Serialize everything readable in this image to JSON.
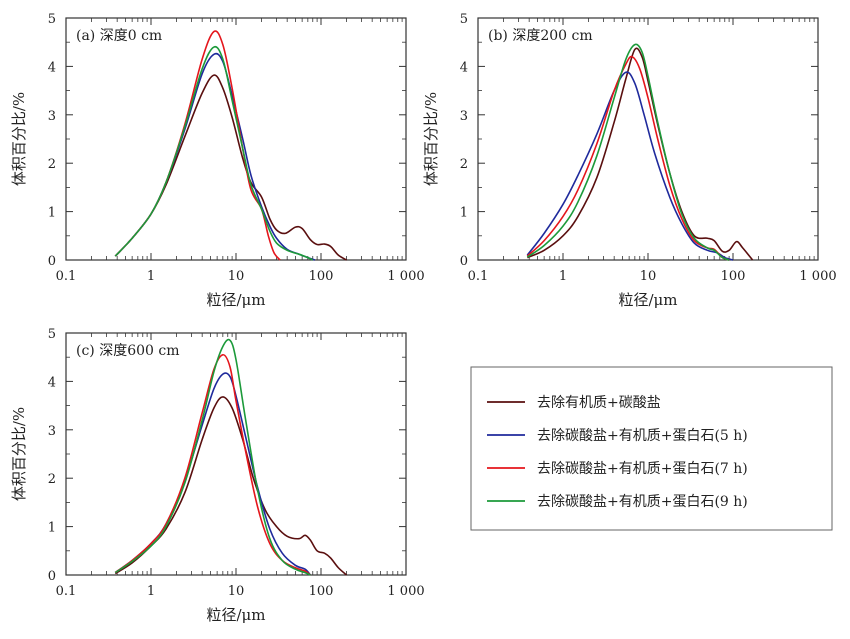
{
  "colors": {
    "series": [
      "#5a0f0f",
      "#1f2a9c",
      "#e4161c",
      "#1c9a3a"
    ]
  },
  "legend": {
    "entries": [
      "去除有机质+碳酸盐",
      "去除碳酸盐+有机质+蛋白石(5 h)",
      "去除碳酸盐+有机质+蛋白石(7 h)",
      "去除碳酸盐+有机质+蛋白石(9 h)"
    ]
  },
  "chart_data": [
    {
      "type": "line",
      "panel_label": "(a) 深度0 cm",
      "xlabel": "粒径/μm",
      "ylabel": "体积百分比/%",
      "xscale": "log",
      "xlim": [
        0.1,
        1000
      ],
      "ylim": [
        0,
        5
      ],
      "x_ticks": [
        "0.1",
        "1",
        "10",
        "100",
        "1 000"
      ],
      "y_ticks": [
        "0",
        "1",
        "2",
        "3",
        "4",
        "5"
      ],
      "series": [
        {
          "name": "去除有机质+碳酸盐",
          "points": [
            [
              0.38,
              0.08
            ],
            [
              0.6,
              0.45
            ],
            [
              1,
              0.95
            ],
            [
              1.5,
              1.55
            ],
            [
              2.5,
              2.55
            ],
            [
              4,
              3.45
            ],
            [
              5.5,
              3.82
            ],
            [
              7,
              3.55
            ],
            [
              9,
              2.95
            ],
            [
              12,
              2.1
            ],
            [
              15,
              1.6
            ],
            [
              20,
              1.3
            ],
            [
              25,
              0.85
            ],
            [
              30,
              0.62
            ],
            [
              38,
              0.55
            ],
            [
              50,
              0.68
            ],
            [
              60,
              0.65
            ],
            [
              75,
              0.42
            ],
            [
              90,
              0.32
            ],
            [
              110,
              0.33
            ],
            [
              130,
              0.28
            ],
            [
              160,
              0.1
            ],
            [
              200,
              0.0
            ]
          ]
        },
        {
          "name": "去除碳酸盐+有机质+蛋白石(5 h)",
          "points": [
            [
              0.38,
              0.08
            ],
            [
              0.6,
              0.45
            ],
            [
              1,
              0.95
            ],
            [
              1.5,
              1.6
            ],
            [
              2.5,
              2.7
            ],
            [
              4,
              3.85
            ],
            [
              5.5,
              4.25
            ],
            [
              7,
              4.1
            ],
            [
              9,
              3.4
            ],
            [
              12,
              2.5
            ],
            [
              15,
              1.75
            ],
            [
              20,
              1.1
            ],
            [
              25,
              0.7
            ],
            [
              30,
              0.45
            ],
            [
              40,
              0.22
            ],
            [
              55,
              0.12
            ],
            [
              70,
              0.05
            ],
            [
              85,
              0.0
            ]
          ]
        },
        {
          "name": "去除碳酸盐+有机质+蛋白石(7 h)",
          "points": [
            [
              0.38,
              0.08
            ],
            [
              0.6,
              0.45
            ],
            [
              1,
              0.95
            ],
            [
              1.5,
              1.6
            ],
            [
              2.5,
              2.8
            ],
            [
              4,
              4.15
            ],
            [
              5.5,
              4.72
            ],
            [
              7,
              4.45
            ],
            [
              9,
              3.55
            ],
            [
              12,
              2.3
            ],
            [
              15,
              1.45
            ],
            [
              20,
              1.05
            ],
            [
              24,
              0.5
            ],
            [
              28,
              0.15
            ],
            [
              33,
              0.0
            ]
          ]
        },
        {
          "name": "去除碳酸盐+有机质+蛋白石(9 h)",
          "points": [
            [
              0.38,
              0.08
            ],
            [
              0.6,
              0.45
            ],
            [
              1,
              0.95
            ],
            [
              1.5,
              1.6
            ],
            [
              2.5,
              2.75
            ],
            [
              4,
              3.95
            ],
            [
              5.5,
              4.4
            ],
            [
              7,
              4.15
            ],
            [
              9,
              3.3
            ],
            [
              12,
              2.3
            ],
            [
              15,
              1.55
            ],
            [
              20,
              1.05
            ],
            [
              25,
              0.6
            ],
            [
              30,
              0.35
            ],
            [
              40,
              0.2
            ],
            [
              55,
              0.12
            ],
            [
              70,
              0.05
            ],
            [
              80,
              0.0
            ]
          ]
        }
      ]
    },
    {
      "type": "line",
      "panel_label": "(b) 深度200 cm",
      "xlabel": "粒径/μm",
      "ylabel": "体积百分比/%",
      "xscale": "log",
      "xlim": [
        0.1,
        1000
      ],
      "ylim": [
        0,
        5
      ],
      "x_ticks": [
        "0.1",
        "1",
        "10",
        "100",
        "1 000"
      ],
      "y_ticks": [
        "0",
        "1",
        "2",
        "3",
        "4",
        "5"
      ],
      "series": [
        {
          "name": "去除有机质+碳酸盐",
          "points": [
            [
              0.38,
              0.05
            ],
            [
              0.6,
              0.2
            ],
            [
              1,
              0.5
            ],
            [
              1.5,
              0.9
            ],
            [
              2.5,
              1.7
            ],
            [
              4,
              2.85
            ],
            [
              5.5,
              3.75
            ],
            [
              7,
              4.35
            ],
            [
              8.5,
              4.2
            ],
            [
              10,
              3.7
            ],
            [
              13,
              2.8
            ],
            [
              18,
              1.8
            ],
            [
              25,
              1.0
            ],
            [
              35,
              0.5
            ],
            [
              50,
              0.45
            ],
            [
              60,
              0.4
            ],
            [
              75,
              0.18
            ],
            [
              90,
              0.2
            ],
            [
              110,
              0.38
            ],
            [
              130,
              0.25
            ],
            [
              170,
              0.0
            ]
          ]
        },
        {
          "name": "去除碳酸盐+有机质+蛋白石(5 h)",
          "points": [
            [
              0.38,
              0.1
            ],
            [
              0.6,
              0.55
            ],
            [
              1,
              1.15
            ],
            [
              1.5,
              1.75
            ],
            [
              2.5,
              2.6
            ],
            [
              4,
              3.5
            ],
            [
              5.5,
              3.88
            ],
            [
              7,
              3.65
            ],
            [
              9,
              3.0
            ],
            [
              12,
              2.2
            ],
            [
              18,
              1.3
            ],
            [
              25,
              0.75
            ],
            [
              35,
              0.35
            ],
            [
              50,
              0.2
            ],
            [
              65,
              0.15
            ],
            [
              80,
              0.05
            ],
            [
              100,
              0.0
            ]
          ]
        },
        {
          "name": "去除碳酸盐+有机质+蛋白石(7 h)",
          "points": [
            [
              0.38,
              0.08
            ],
            [
              0.6,
              0.4
            ],
            [
              1,
              0.9
            ],
            [
              1.5,
              1.45
            ],
            [
              2.5,
              2.4
            ],
            [
              4,
              3.5
            ],
            [
              5.5,
              4.05
            ],
            [
              6.5,
              4.2
            ],
            [
              8,
              3.95
            ],
            [
              10,
              3.35
            ],
            [
              13,
              2.5
            ],
            [
              18,
              1.55
            ],
            [
              25,
              0.85
            ],
            [
              35,
              0.4
            ],
            [
              50,
              0.25
            ],
            [
              60,
              0.22
            ],
            [
              75,
              0.05
            ],
            [
              90,
              0.0
            ]
          ]
        },
        {
          "name": "去除碳酸盐+有机质+蛋白石(9 h)",
          "points": [
            [
              0.38,
              0.06
            ],
            [
              0.6,
              0.3
            ],
            [
              1,
              0.7
            ],
            [
              1.5,
              1.2
            ],
            [
              2.5,
              2.15
            ],
            [
              4,
              3.35
            ],
            [
              5.5,
              4.15
            ],
            [
              7,
              4.45
            ],
            [
              8.5,
              4.3
            ],
            [
              10,
              3.8
            ],
            [
              13,
              2.85
            ],
            [
              18,
              1.8
            ],
            [
              25,
              0.95
            ],
            [
              35,
              0.45
            ],
            [
              50,
              0.25
            ],
            [
              60,
              0.2
            ],
            [
              75,
              0.05
            ],
            [
              90,
              0.0
            ]
          ]
        }
      ]
    },
    {
      "type": "line",
      "panel_label": "(c) 深度600 cm",
      "xlabel": "粒径/μm",
      "ylabel": "体积百分比/%",
      "xscale": "log",
      "xlim": [
        0.1,
        1000
      ],
      "ylim": [
        0,
        5
      ],
      "x_ticks": [
        "0.1",
        "1",
        "10",
        "100",
        "1 000"
      ],
      "y_ticks": [
        "0",
        "1",
        "2",
        "3",
        "4",
        "5"
      ],
      "series": [
        {
          "name": "去除有机质+碳酸盐",
          "points": [
            [
              0.38,
              0.03
            ],
            [
              0.6,
              0.25
            ],
            [
              1,
              0.6
            ],
            [
              1.5,
              0.95
            ],
            [
              2.5,
              1.7
            ],
            [
              4,
              2.8
            ],
            [
              5.5,
              3.45
            ],
            [
              7,
              3.68
            ],
            [
              9,
              3.45
            ],
            [
              12,
              2.8
            ],
            [
              16,
              2.0
            ],
            [
              22,
              1.35
            ],
            [
              30,
              1.0
            ],
            [
              40,
              0.8
            ],
            [
              55,
              0.75
            ],
            [
              65,
              0.82
            ],
            [
              75,
              0.72
            ],
            [
              90,
              0.5
            ],
            [
              110,
              0.45
            ],
            [
              130,
              0.35
            ],
            [
              160,
              0.15
            ],
            [
              200,
              0.0
            ]
          ]
        },
        {
          "name": "去除碳酸盐+有机质+蛋白石(5 h)",
          "points": [
            [
              0.38,
              0.05
            ],
            [
              0.6,
              0.3
            ],
            [
              1,
              0.65
            ],
            [
              1.5,
              1.05
            ],
            [
              2.5,
              1.95
            ],
            [
              4,
              3.1
            ],
            [
              5.5,
              3.85
            ],
            [
              7,
              4.15
            ],
            [
              8.5,
              4.1
            ],
            [
              10,
              3.7
            ],
            [
              13,
              2.85
            ],
            [
              18,
              1.8
            ],
            [
              25,
              0.95
            ],
            [
              35,
              0.45
            ],
            [
              50,
              0.2
            ],
            [
              65,
              0.12
            ],
            [
              75,
              0.0
            ]
          ]
        },
        {
          "name": "去除碳酸盐+有机质+蛋白石(7 h)",
          "points": [
            [
              0.38,
              0.05
            ],
            [
              0.6,
              0.3
            ],
            [
              1,
              0.65
            ],
            [
              1.5,
              1.05
            ],
            [
              2.5,
              2.0
            ],
            [
              4,
              3.35
            ],
            [
              5.5,
              4.25
            ],
            [
              7,
              4.55
            ],
            [
              8.5,
              4.3
            ],
            [
              10,
              3.6
            ],
            [
              13,
              2.55
            ],
            [
              18,
              1.4
            ],
            [
              25,
              0.65
            ],
            [
              35,
              0.3
            ],
            [
              50,
              0.15
            ],
            [
              65,
              0.08
            ],
            [
              75,
              0.0
            ]
          ]
        },
        {
          "name": "去除碳酸盐+有机质+蛋白石(9 h)",
          "points": [
            [
              0.38,
              0.05
            ],
            [
              0.6,
              0.28
            ],
            [
              1,
              0.6
            ],
            [
              1.5,
              1.0
            ],
            [
              2.5,
              1.9
            ],
            [
              4,
              3.2
            ],
            [
              5.5,
              4.2
            ],
            [
              7,
              4.72
            ],
            [
              8.5,
              4.85
            ],
            [
              10,
              4.45
            ],
            [
              13,
              3.2
            ],
            [
              18,
              1.75
            ],
            [
              25,
              0.75
            ],
            [
              35,
              0.3
            ],
            [
              50,
              0.12
            ],
            [
              65,
              0.05
            ],
            [
              75,
              0.0
            ]
          ]
        }
      ]
    }
  ]
}
